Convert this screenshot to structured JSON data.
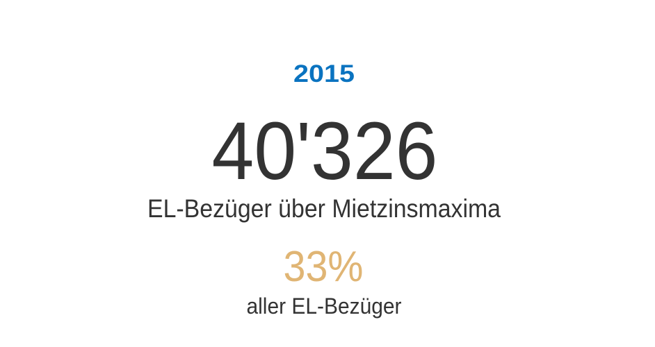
{
  "year": "2015",
  "count": "40'326",
  "count_label": "EL-Bezüger über Mietzinsmaxima",
  "share": "33%",
  "share_label": "aller EL-Bezüger"
}
